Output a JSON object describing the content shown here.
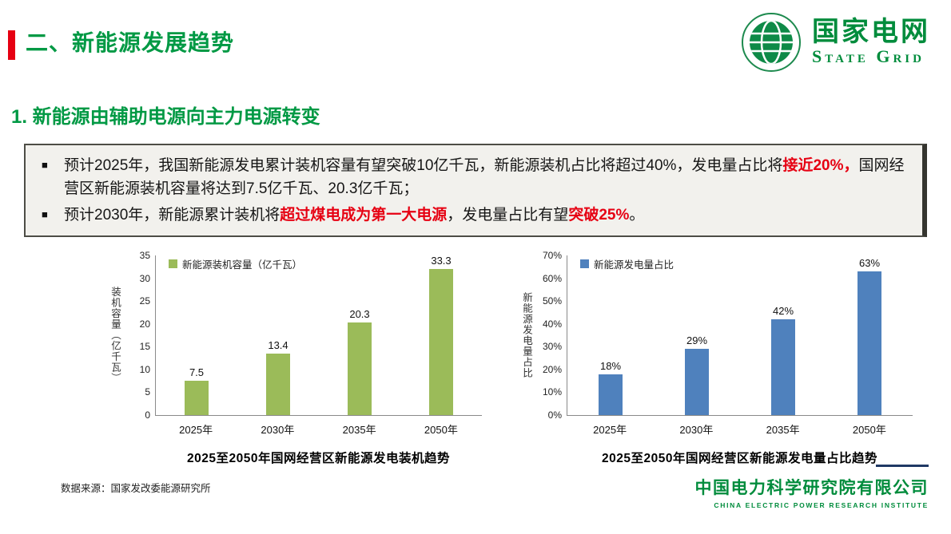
{
  "header": {
    "title": "二、新能源发展趋势",
    "logo": {
      "cn": "国家电网",
      "en": "State Grid"
    }
  },
  "section": {
    "title": "1. 新能源由辅助电源向主力电源转变"
  },
  "box": {
    "bullets": [
      {
        "marker": "■",
        "segments": [
          {
            "text": "预计2025年，我国新能源发电累计装机容量有望突破10亿千瓦，新能源装机占比将超过40%，发电量占比将",
            "style": "normal"
          },
          {
            "text": "接近20%，",
            "style": "red"
          },
          {
            "text": "国网经营区新能源装机容量将达到7.5亿千瓦、20.3亿千瓦；",
            "style": "normal"
          }
        ]
      },
      {
        "marker": "■",
        "segments": [
          {
            "text": "预计2030年，新能源累计装机将",
            "style": "normal"
          },
          {
            "text": "超过煤电成为第一大电源",
            "style": "red"
          },
          {
            "text": "，发电量占比有望",
            "style": "normal"
          },
          {
            "text": "突破25%",
            "style": "red"
          },
          {
            "text": "。",
            "style": "normal"
          }
        ]
      }
    ]
  },
  "chart_data": [
    {
      "type": "bar",
      "legend": "新能源装机容量（亿千瓦）",
      "ylabel": "装机容量（亿千瓦）",
      "categories": [
        "2025年",
        "2030年",
        "2035年",
        "2050年"
      ],
      "values": [
        7.5,
        13.4,
        20.3,
        33.3
      ],
      "value_labels": [
        "7.5",
        "13.4",
        "20.3",
        "33.3"
      ],
      "ylim": [
        0,
        35
      ],
      "ytick_step": 5,
      "ytick_suffix": "",
      "grid": false,
      "legend_position": "top-left-inside",
      "bar_color": "#9bbb59",
      "caption": "2025至2050年国网经营区新能源发电装机趋势"
    },
    {
      "type": "bar",
      "legend": "新能源发电量占比",
      "ylabel": "新能源发电量占比",
      "categories": [
        "2025年",
        "2030年",
        "2035年",
        "2050年"
      ],
      "values": [
        18,
        29,
        42,
        63
      ],
      "value_labels": [
        "18%",
        "29%",
        "42%",
        "63%"
      ],
      "ylim": [
        0,
        70
      ],
      "ytick_step": 10,
      "ytick_suffix": "%",
      "grid": false,
      "legend_position": "top-left-inside",
      "bar_color": "#4f81bd",
      "caption": "2025至2050年国网经营区新能源发电量占比趋势"
    }
  ],
  "footer": {
    "data_source": "数据来源：国家发改委能源研究所",
    "institute_cn": "中国电力科学研究院有限公司",
    "institute_en": "CHINA ELECTRIC POWER RESEARCH INSTITUTE"
  },
  "colors": {
    "accent_green": "#009944",
    "accent_red": "#e60012",
    "logo_green": "#008c3c",
    "bar_green": "#9bbb59",
    "bar_blue": "#4f81bd"
  }
}
